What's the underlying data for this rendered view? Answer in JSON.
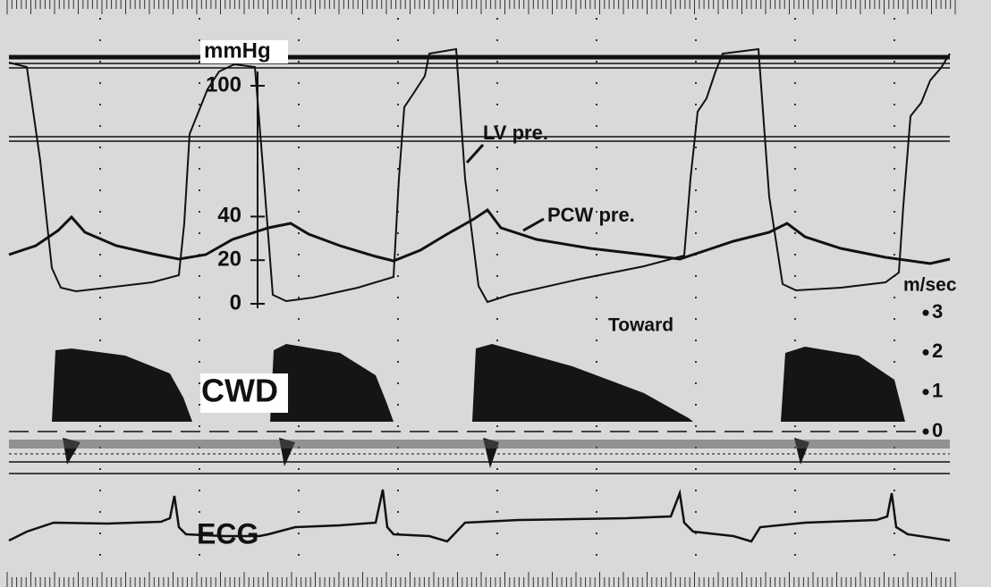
{
  "pressure_scale": {
    "unit": "mmHg",
    "ticks": [
      100,
      40,
      20,
      0
    ]
  },
  "velocity_scale": {
    "unit": "m/sec",
    "ticks": [
      3,
      2,
      1,
      0
    ]
  },
  "labels": {
    "lv": "LV pre.",
    "pcw": "PCW pre.",
    "direction": "Toward",
    "doppler": "CWD",
    "ecg": "ECG"
  }
}
